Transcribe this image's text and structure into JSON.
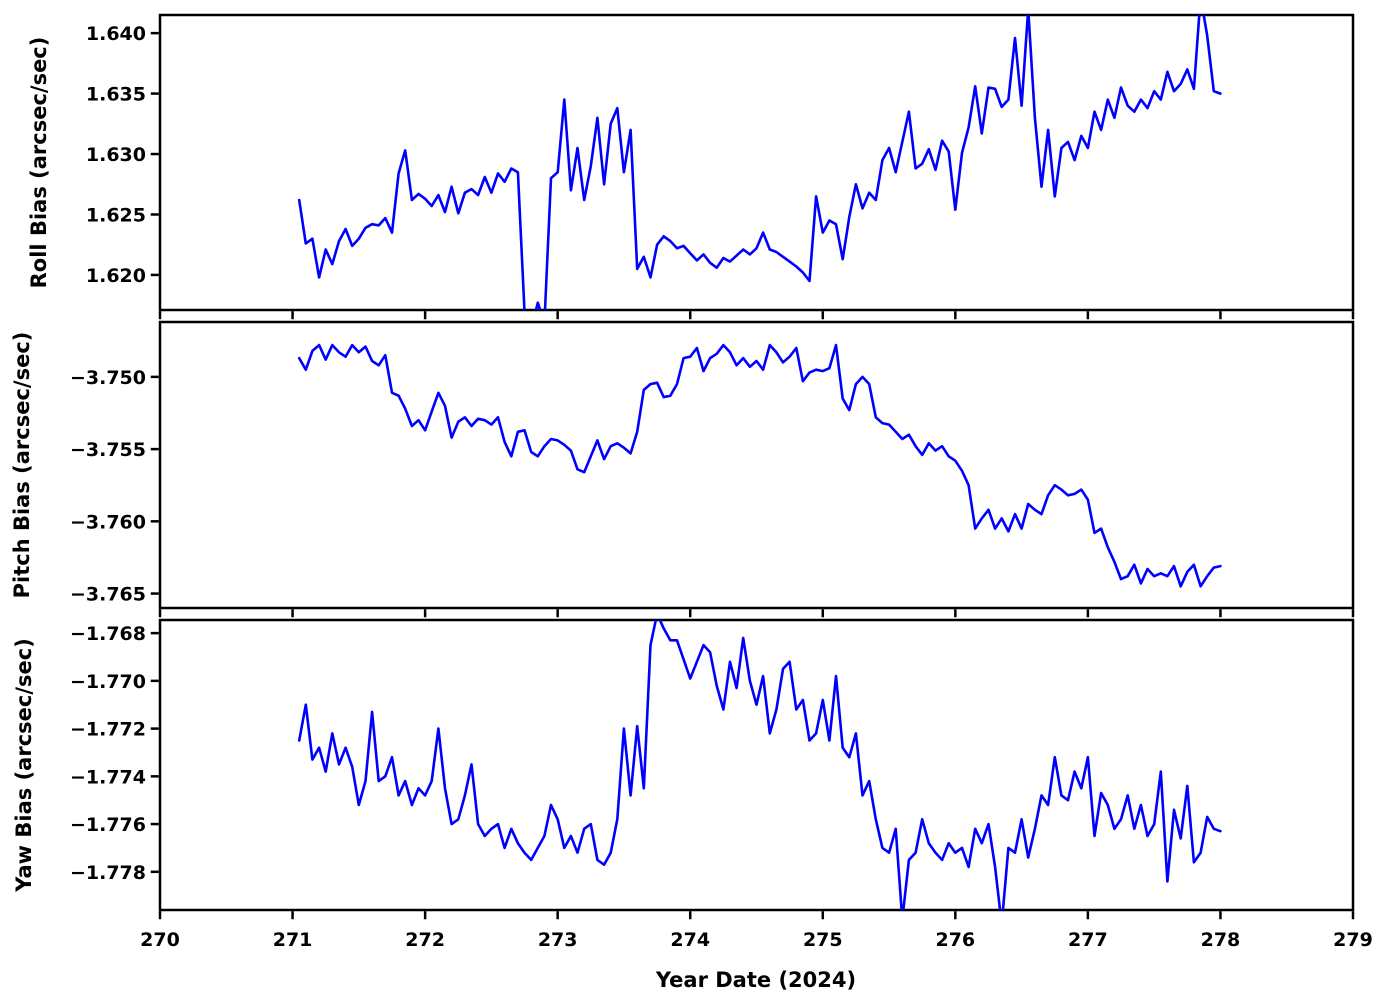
{
  "figure": {
    "background": "#ffffff",
    "axis_color": "#000000"
  },
  "chart_data": {
    "type": "line",
    "title": "",
    "xlabel": "Year Date (2024)",
    "xlim": [
      270,
      279
    ],
    "xticks": [
      270,
      271,
      272,
      273,
      274,
      275,
      276,
      277,
      278,
      279
    ],
    "line_color": "#0000ff",
    "grid": false,
    "legend": "none",
    "x": [
      271.05,
      271.1,
      271.15,
      271.2,
      271.25,
      271.3,
      271.35,
      271.4,
      271.45,
      271.5,
      271.55,
      271.6,
      271.65,
      271.7,
      271.75,
      271.8,
      271.85,
      271.9,
      271.95,
      272.0,
      272.05,
      272.1,
      272.15,
      272.2,
      272.25,
      272.3,
      272.35,
      272.4,
      272.45,
      272.5,
      272.55,
      272.6,
      272.65,
      272.7,
      272.75,
      272.8,
      272.85,
      272.9,
      272.95,
      273.0,
      273.05,
      273.1,
      273.15,
      273.2,
      273.25,
      273.3,
      273.35,
      273.4,
      273.45,
      273.5,
      273.55,
      273.6,
      273.65,
      273.7,
      273.75,
      273.8,
      273.85,
      273.9,
      273.95,
      274.0,
      274.05,
      274.1,
      274.15,
      274.2,
      274.25,
      274.3,
      274.35,
      274.4,
      274.45,
      274.5,
      274.55,
      274.6,
      274.65,
      274.7,
      274.75,
      274.8,
      274.85,
      274.9,
      274.95,
      275.0,
      275.05,
      275.1,
      275.15,
      275.2,
      275.25,
      275.3,
      275.35,
      275.4,
      275.45,
      275.5,
      275.55,
      275.6,
      275.65,
      275.7,
      275.75,
      275.8,
      275.85,
      275.9,
      275.95,
      276.0,
      276.05,
      276.1,
      276.15,
      276.2,
      276.25,
      276.3,
      276.35,
      276.4,
      276.45,
      276.5,
      276.55,
      276.6,
      276.65,
      276.7,
      276.75,
      276.8,
      276.85,
      276.9,
      276.95,
      277.0,
      277.05,
      277.1,
      277.15,
      277.2,
      277.25,
      277.3,
      277.35,
      277.4,
      277.45,
      277.5,
      277.55,
      277.6,
      277.65,
      277.7,
      277.75,
      277.8,
      277.85,
      277.9,
      277.95,
      278.0
    ],
    "series": [
      {
        "name": "roll",
        "ylabel": "Roll Bias (arcsec/sec)",
        "ylim": [
          1.6171,
          1.6415
        ],
        "yticks": [
          {
            "label": "1.640",
            "value": 1.64
          },
          {
            "label": "1.635",
            "value": 1.635
          },
          {
            "label": "1.630",
            "value": 1.63
          },
          {
            "label": "1.625",
            "value": 1.625
          },
          {
            "label": "1.620",
            "value": 1.62
          }
        ],
        "values": [
          1.6262,
          1.6226,
          1.623,
          1.6198,
          1.6221,
          1.6209,
          1.6228,
          1.6238,
          1.6224,
          1.623,
          1.6239,
          1.6242,
          1.6241,
          1.6247,
          1.6235,
          1.6284,
          1.6303,
          1.6262,
          1.6267,
          1.6263,
          1.6257,
          1.6266,
          1.6252,
          1.6273,
          1.6251,
          1.6268,
          1.6271,
          1.6266,
          1.6281,
          1.6268,
          1.6284,
          1.6277,
          1.6288,
          1.6285,
          1.617,
          1.6155,
          1.6177,
          1.616,
          1.628,
          1.6285,
          1.6345,
          1.627,
          1.6305,
          1.6262,
          1.629,
          1.633,
          1.6275,
          1.6325,
          1.6338,
          1.6285,
          1.632,
          1.6205,
          1.6215,
          1.6198,
          1.6225,
          1.6232,
          1.6228,
          1.6222,
          1.6224,
          1.6218,
          1.6212,
          1.6217,
          1.621,
          1.6206,
          1.6214,
          1.6211,
          1.6216,
          1.6221,
          1.6217,
          1.6222,
          1.6235,
          1.6221,
          1.6219,
          1.6215,
          1.6211,
          1.6207,
          1.6202,
          1.6195,
          1.6265,
          1.6235,
          1.6245,
          1.6242,
          1.6213,
          1.6248,
          1.6275,
          1.6255,
          1.6268,
          1.6262,
          1.6295,
          1.6305,
          1.6285,
          1.631,
          1.6335,
          1.6288,
          1.6292,
          1.6304,
          1.6287,
          1.6311,
          1.6302,
          1.6254,
          1.6301,
          1.6322,
          1.6356,
          1.6317,
          1.6355,
          1.6354,
          1.6339,
          1.6345,
          1.6396,
          1.634,
          1.642,
          1.633,
          1.6273,
          1.632,
          1.6265,
          1.6305,
          1.631,
          1.6295,
          1.6315,
          1.6305,
          1.6335,
          1.632,
          1.6345,
          1.633,
          1.6355,
          1.634,
          1.6335,
          1.6345,
          1.6338,
          1.6352,
          1.6345,
          1.6368,
          1.6352,
          1.6358,
          1.637,
          1.6354,
          1.643,
          1.6398,
          1.6352,
          1.635
        ]
      },
      {
        "name": "pitch",
        "ylabel": "Pitch Bias (arcsec/sec)",
        "ylim": [
          -3.766,
          -3.7462
        ],
        "yticks": [
          {
            "label": "−3.750",
            "value": -3.75
          },
          {
            "label": "−3.755",
            "value": -3.755
          },
          {
            "label": "−3.760",
            "value": -3.76
          },
          {
            "label": "−3.765",
            "value": -3.765
          }
        ],
        "values": [
          -3.7487,
          -3.7495,
          -3.7482,
          -3.7478,
          -3.7488,
          -3.7478,
          -3.7483,
          -3.7486,
          -3.7478,
          -3.7483,
          -3.7479,
          -3.7489,
          -3.7492,
          -3.7485,
          -3.7511,
          -3.7513,
          -3.7522,
          -3.7534,
          -3.753,
          -3.7537,
          -3.7524,
          -3.7511,
          -3.752,
          -3.7542,
          -3.7531,
          -3.7528,
          -3.7534,
          -3.7529,
          -3.753,
          -3.7533,
          -3.7528,
          -3.7545,
          -3.7555,
          -3.7538,
          -3.7537,
          -3.7552,
          -3.7555,
          -3.7548,
          -3.7543,
          -3.7544,
          -3.7547,
          -3.7551,
          -3.7564,
          -3.7566,
          -3.7555,
          -3.7544,
          -3.7557,
          -3.7548,
          -3.7546,
          -3.7549,
          -3.7553,
          -3.7538,
          -3.7509,
          -3.7505,
          -3.7504,
          -3.7514,
          -3.7513,
          -3.7505,
          -3.7487,
          -3.7486,
          -3.748,
          -3.7496,
          -3.7487,
          -3.7484,
          -3.7478,
          -3.7483,
          -3.7492,
          -3.7487,
          -3.7493,
          -3.7489,
          -3.7495,
          -3.7478,
          -3.7483,
          -3.749,
          -3.7486,
          -3.748,
          -3.7503,
          -3.7497,
          -3.7495,
          -3.7496,
          -3.7494,
          -3.7478,
          -3.7515,
          -3.7523,
          -3.7505,
          -3.75,
          -3.7505,
          -3.7528,
          -3.7532,
          -3.7533,
          -3.7538,
          -3.7543,
          -3.754,
          -3.7548,
          -3.7554,
          -3.7546,
          -3.7551,
          -3.7548,
          -3.7555,
          -3.7558,
          -3.7565,
          -3.7575,
          -3.7605,
          -3.7598,
          -3.7592,
          -3.7605,
          -3.7598,
          -3.7607,
          -3.7595,
          -3.7605,
          -3.7588,
          -3.7592,
          -3.7595,
          -3.7582,
          -3.7575,
          -3.7578,
          -3.7582,
          -3.7581,
          -3.7578,
          -3.7585,
          -3.7608,
          -3.7605,
          -3.7618,
          -3.7628,
          -3.764,
          -3.7638,
          -3.763,
          -3.7643,
          -3.7633,
          -3.7638,
          -3.7636,
          -3.7638,
          -3.7631,
          -3.7645,
          -3.7635,
          -3.763,
          -3.7645,
          -3.7638,
          -3.7632,
          -3.7631
        ]
      },
      {
        "name": "yaw",
        "ylabel": "Yaw Bias (arcsec/sec)",
        "ylim": [
          -1.7796,
          -1.76745
        ],
        "yticks": [
          {
            "label": "−1.768",
            "value": -1.768
          },
          {
            "label": "−1.770",
            "value": -1.77
          },
          {
            "label": "−1.772",
            "value": -1.772
          },
          {
            "label": "−1.774",
            "value": -1.774
          },
          {
            "label": "−1.776",
            "value": -1.776
          },
          {
            "label": "−1.778",
            "value": -1.778
          }
        ],
        "values": [
          -1.7725,
          -1.771,
          -1.7733,
          -1.7728,
          -1.7738,
          -1.7722,
          -1.7735,
          -1.7728,
          -1.7736,
          -1.7752,
          -1.7742,
          -1.7713,
          -1.7742,
          -1.774,
          -1.7732,
          -1.7748,
          -1.7742,
          -1.7752,
          -1.7745,
          -1.7748,
          -1.7742,
          -1.772,
          -1.7745,
          -1.776,
          -1.7758,
          -1.7748,
          -1.7735,
          -1.776,
          -1.7765,
          -1.7762,
          -1.776,
          -1.777,
          -1.7762,
          -1.7768,
          -1.7772,
          -1.7775,
          -1.777,
          -1.7765,
          -1.7752,
          -1.7758,
          -1.777,
          -1.7765,
          -1.7772,
          -1.7762,
          -1.776,
          -1.7775,
          -1.7777,
          -1.7772,
          -1.7758,
          -1.772,
          -1.7748,
          -1.7719,
          -1.7745,
          -1.7685,
          -1.7672,
          -1.7678,
          -1.7683,
          -1.7683,
          -1.7691,
          -1.7699,
          -1.7692,
          -1.7685,
          -1.7688,
          -1.7702,
          -1.7712,
          -1.7692,
          -1.7703,
          -1.7682,
          -1.77,
          -1.771,
          -1.7698,
          -1.7722,
          -1.7712,
          -1.7695,
          -1.7692,
          -1.7712,
          -1.7708,
          -1.7725,
          -1.7722,
          -1.7708,
          -1.7725,
          -1.7698,
          -1.7728,
          -1.7732,
          -1.7722,
          -1.7748,
          -1.7742,
          -1.7758,
          -1.777,
          -1.7772,
          -1.7762,
          -1.78,
          -1.7775,
          -1.7772,
          -1.7758,
          -1.7768,
          -1.7772,
          -1.7775,
          -1.7768,
          -1.7772,
          -1.777,
          -1.7778,
          -1.7762,
          -1.7768,
          -1.776,
          -1.7778,
          -1.7802,
          -1.777,
          -1.7772,
          -1.7758,
          -1.7774,
          -1.7762,
          -1.7748,
          -1.7752,
          -1.7732,
          -1.7748,
          -1.775,
          -1.7738,
          -1.7745,
          -1.7732,
          -1.7765,
          -1.7747,
          -1.7752,
          -1.7762,
          -1.7758,
          -1.7748,
          -1.7762,
          -1.7752,
          -1.7765,
          -1.776,
          -1.7738,
          -1.7784,
          -1.7754,
          -1.7766,
          -1.7744,
          -1.7776,
          -1.7772,
          -1.7757,
          -1.7762,
          -1.7763
        ]
      }
    ]
  }
}
